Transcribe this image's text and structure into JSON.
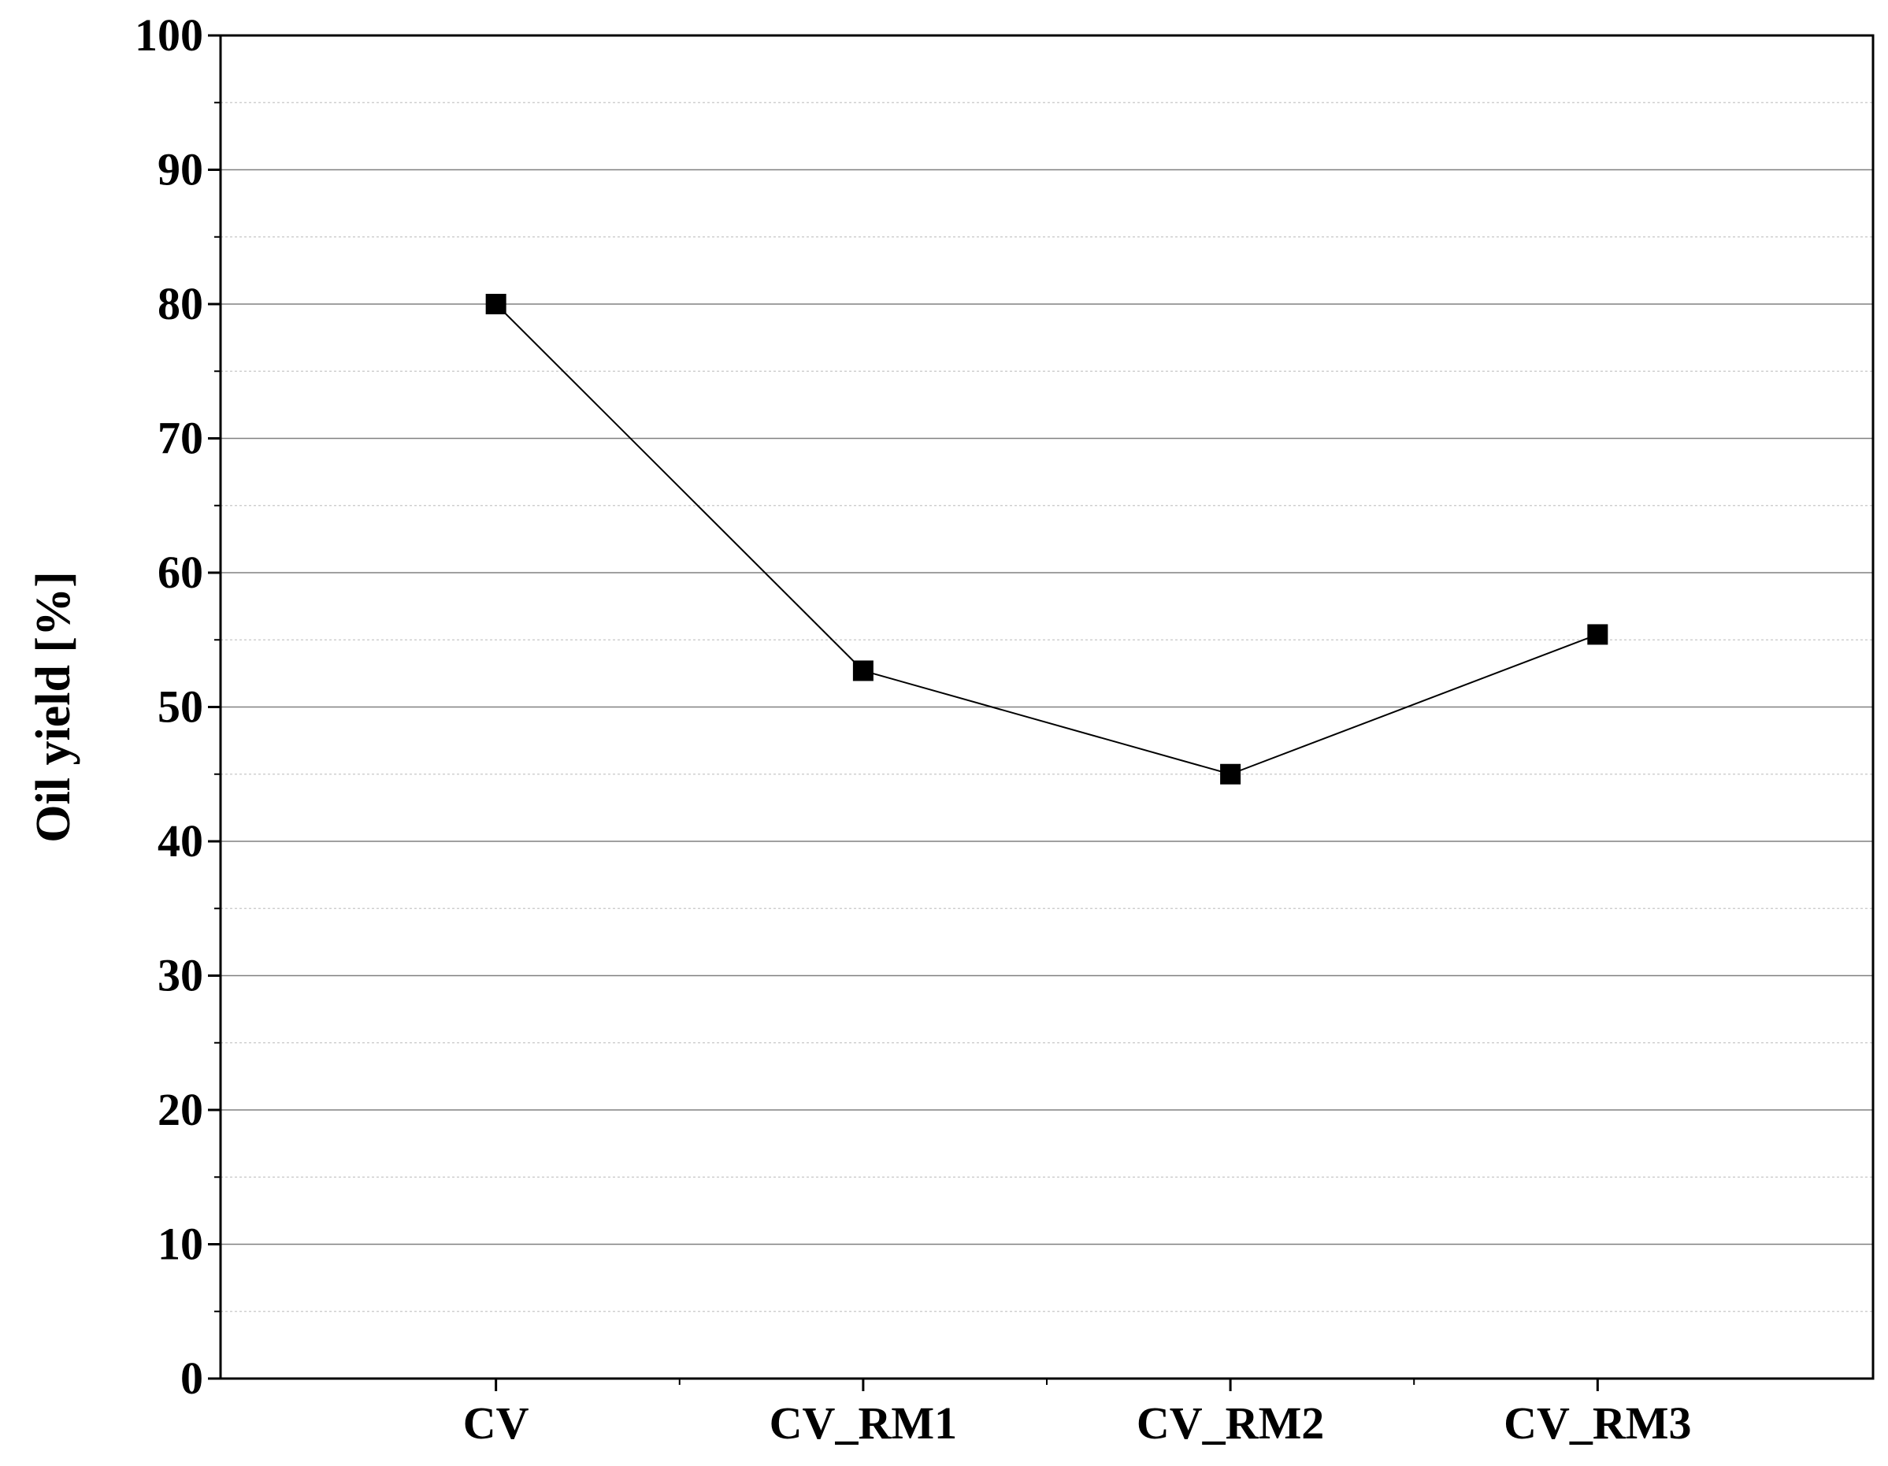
{
  "chart_data": {
    "type": "line",
    "title": "",
    "xlabel": "",
    "ylabel": "Oil yield [%]",
    "categories": [
      "CV",
      "CV_RM1",
      "CV_RM2",
      "CV_RM3"
    ],
    "series": [
      {
        "values": [
          80.0,
          52.7,
          45.0,
          55.4
        ],
        "color": "#000000",
        "marker": "square"
      }
    ],
    "ylim": [
      0,
      100
    ],
    "yticks": [
      "0",
      "10",
      "20",
      "30",
      "40",
      "50",
      "60",
      "70",
      "80",
      "90",
      "100"
    ],
    "grid": {
      "major": true,
      "minor": true
    }
  }
}
